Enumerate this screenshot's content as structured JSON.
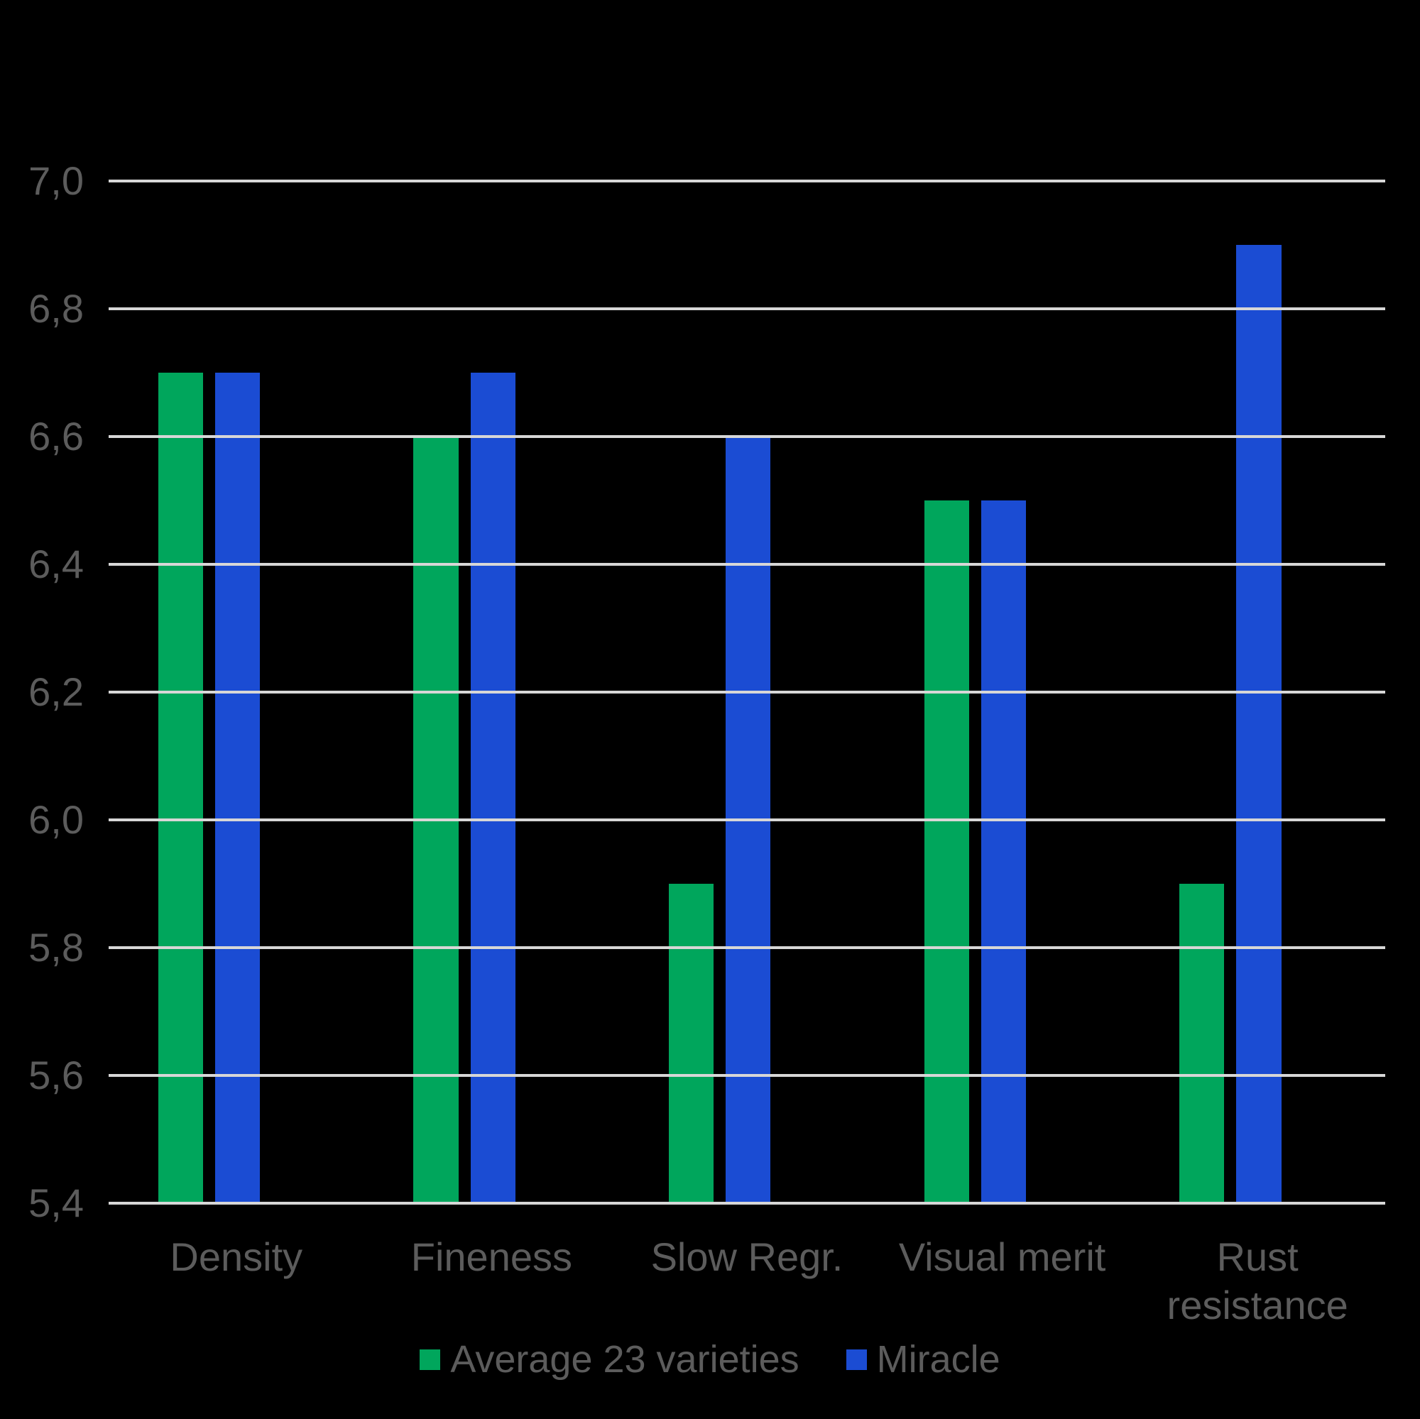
{
  "chart_data": {
    "type": "bar",
    "title": "",
    "categories": [
      "Density",
      "Fineness",
      "Slow Regr.",
      "Visual merit",
      "Rust resistance"
    ],
    "series": [
      {
        "key": "average-23-varieties",
        "name": "Average 23 varieties",
        "color": "#00A65C",
        "values": [
          6.7,
          6.6,
          5.9,
          6.5,
          5.9
        ]
      },
      {
        "key": "miracle",
        "name": "Miracle",
        "color": "#1B4CD3",
        "values": [
          6.7,
          6.7,
          6.6,
          6.5,
          6.9
        ]
      }
    ],
    "ylim": [
      5.4,
      7.0
    ],
    "ytick_values": [
      7.0,
      6.8,
      6.6,
      6.4,
      6.2,
      6.0,
      5.8,
      5.6,
      5.4
    ],
    "ytick_labels": [
      "7,0",
      "6,8",
      "6,6",
      "6,4",
      "6,2",
      "6,0",
      "5,8",
      "5,6",
      "5,4"
    ],
    "grid": true,
    "legend_position": "bottom",
    "colors": {
      "background": "#000000",
      "gridline": "#D7D7D7",
      "text": "#5C5C5C"
    }
  }
}
